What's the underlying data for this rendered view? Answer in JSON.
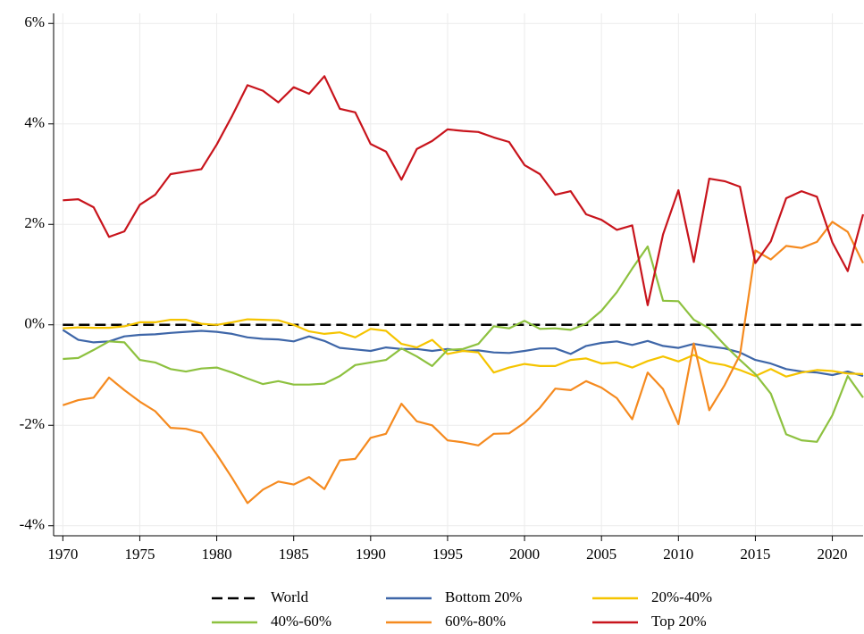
{
  "chart_data": {
    "type": "line",
    "x": [
      1970,
      1971,
      1972,
      1973,
      1974,
      1975,
      1976,
      1977,
      1978,
      1979,
      1980,
      1981,
      1982,
      1983,
      1984,
      1985,
      1986,
      1987,
      1988,
      1989,
      1990,
      1991,
      1992,
      1993,
      1994,
      1995,
      1996,
      1997,
      1998,
      1999,
      2000,
      2001,
      2002,
      2003,
      2004,
      2005,
      2006,
      2007,
      2008,
      2009,
      2010,
      2011,
      2012,
      2013,
      2014,
      2015,
      2016,
      2017,
      2018,
      2019,
      2020,
      2021,
      2022
    ],
    "xlim": [
      1969.4,
      2022
    ],
    "xticks": [
      1970,
      1975,
      1980,
      1985,
      1990,
      1995,
      2000,
      2005,
      2010,
      2015,
      2020
    ],
    "ylim": [
      -4.2,
      6.2
    ],
    "yticks": [
      {
        "value": -4,
        "label": "-4%"
      },
      {
        "value": -2,
        "label": "-2%"
      },
      {
        "value": 0,
        "label": "0%"
      },
      {
        "value": 2,
        "label": "2%"
      },
      {
        "value": 4,
        "label": "4%"
      },
      {
        "value": 6,
        "label": "6%"
      }
    ],
    "grid": true,
    "legend": "bottom",
    "series": [
      {
        "name": "World",
        "color": "#000000",
        "dashed": true,
        "values": [
          0,
          0,
          0,
          0,
          0,
          0,
          0,
          0,
          0,
          0,
          0,
          0,
          0,
          0,
          0,
          0,
          0,
          0,
          0,
          0,
          0,
          0,
          0,
          0,
          0,
          0,
          0,
          0,
          0,
          0,
          0,
          0,
          0,
          0,
          0,
          0,
          0,
          0,
          0,
          0,
          0,
          0,
          0,
          0,
          0,
          0,
          0,
          0,
          0,
          0,
          0,
          0,
          0
        ]
      },
      {
        "name": "Bottom 20%",
        "color": "#3e66a8",
        "values": [
          -0.1,
          -0.3,
          -0.35,
          -0.33,
          -0.23,
          -0.2,
          -0.19,
          -0.16,
          -0.14,
          -0.12,
          -0.14,
          -0.18,
          -0.25,
          -0.28,
          -0.29,
          -0.33,
          -0.23,
          -0.32,
          -0.46,
          -0.49,
          -0.52,
          -0.45,
          -0.48,
          -0.48,
          -0.52,
          -0.48,
          -0.52,
          -0.51,
          -0.55,
          -0.56,
          -0.52,
          -0.47,
          -0.47,
          -0.58,
          -0.42,
          -0.36,
          -0.33,
          -0.4,
          -0.32,
          -0.42,
          -0.46,
          -0.38,
          -0.43,
          -0.47,
          -0.55,
          -0.7,
          -0.77,
          -0.88,
          -0.93,
          -0.95,
          -1.0,
          -0.93,
          -1.02
        ]
      },
      {
        "name": "20%-40%",
        "color": "#f5c400",
        "values": [
          -0.07,
          -0.05,
          -0.06,
          -0.06,
          -0.03,
          0.05,
          0.05,
          0.1,
          0.1,
          0.02,
          0.0,
          0.05,
          0.11,
          0.1,
          0.09,
          0.0,
          -0.13,
          -0.18,
          -0.15,
          -0.25,
          -0.08,
          -0.12,
          -0.38,
          -0.45,
          -0.3,
          -0.58,
          -0.52,
          -0.55,
          -0.95,
          -0.85,
          -0.78,
          -0.82,
          -0.82,
          -0.7,
          -0.67,
          -0.77,
          -0.75,
          -0.85,
          -0.72,
          -0.63,
          -0.73,
          -0.6,
          -0.75,
          -0.8,
          -0.9,
          -1.02,
          -0.88,
          -1.03,
          -0.95,
          -0.9,
          -0.92,
          -0.97,
          -0.98
        ]
      },
      {
        "name": "40%-60%",
        "color": "#8dc13f",
        "values": [
          -0.68,
          -0.66,
          -0.5,
          -0.33,
          -0.35,
          -0.7,
          -0.75,
          -0.88,
          -0.93,
          -0.87,
          -0.85,
          -0.95,
          -1.07,
          -1.18,
          -1.12,
          -1.19,
          -1.19,
          -1.17,
          -1.02,
          -0.8,
          -0.75,
          -0.7,
          -0.47,
          -0.63,
          -0.82,
          -0.5,
          -0.48,
          -0.38,
          -0.03,
          -0.07,
          0.08,
          -0.08,
          -0.07,
          -0.1,
          0.02,
          0.28,
          0.65,
          1.12,
          1.56,
          0.48,
          0.47,
          0.1,
          -0.07,
          -0.4,
          -0.7,
          -0.98,
          -1.37,
          -2.18,
          -2.3,
          -2.33,
          -1.8,
          -1.02,
          -1.45
        ]
      },
      {
        "name": "60%-80%",
        "color": "#f58a1f",
        "values": [
          -1.6,
          -1.5,
          -1.45,
          -1.05,
          -1.3,
          -1.53,
          -1.72,
          -2.05,
          -2.07,
          -2.15,
          -2.58,
          -3.05,
          -3.55,
          -3.28,
          -3.12,
          -3.18,
          -3.03,
          -3.27,
          -2.7,
          -2.67,
          -2.25,
          -2.17,
          -1.57,
          -1.92,
          -2.0,
          -2.3,
          -2.34,
          -2.4,
          -2.17,
          -2.16,
          -1.95,
          -1.65,
          -1.27,
          -1.3,
          -1.12,
          -1.25,
          -1.46,
          -1.88,
          -0.95,
          -1.28,
          -1.98,
          -0.37,
          -1.7,
          -1.2,
          -0.6,
          1.48,
          1.3,
          1.57,
          1.53,
          1.65,
          2.05,
          1.85,
          1.23
        ]
      },
      {
        "name": "Top 20%",
        "color": "#c8141c",
        "values": [
          2.48,
          2.5,
          2.34,
          1.75,
          1.86,
          2.39,
          2.59,
          3.0,
          3.05,
          3.1,
          3.59,
          4.16,
          4.77,
          4.66,
          4.43,
          4.73,
          4.6,
          4.95,
          4.3,
          4.23,
          3.6,
          3.45,
          2.89,
          3.5,
          3.66,
          3.89,
          3.86,
          3.84,
          3.73,
          3.64,
          3.18,
          3.0,
          2.59,
          2.66,
          2.2,
          2.09,
          1.89,
          1.98,
          0.39,
          1.8,
          2.68,
          1.25,
          2.91,
          2.86,
          2.75,
          1.23,
          1.66,
          2.52,
          2.66,
          2.55,
          1.64,
          1.07,
          2.2
        ]
      }
    ]
  }
}
